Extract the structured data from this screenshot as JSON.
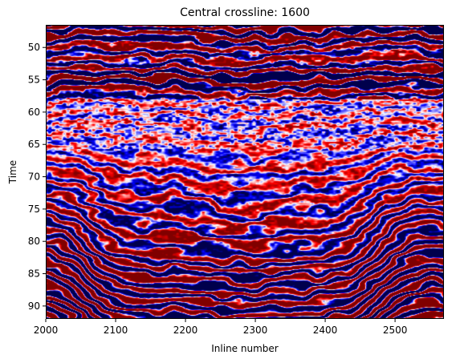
{
  "chart_data": {
    "type": "heatmap",
    "title": "Central crossline: 1600",
    "xlabel": "Inline number",
    "ylabel": "Time",
    "xlim": [
      2000,
      2570
    ],
    "ylim": [
      92,
      46.5
    ],
    "x_ticks": [
      "2000",
      "2100",
      "2200",
      "2300",
      "2400",
      "2500"
    ],
    "x_tick_values": [
      2000,
      2100,
      2200,
      2300,
      2400,
      2500
    ],
    "y_ticks": [
      "50",
      "55",
      "60",
      "65",
      "70",
      "75",
      "80",
      "85",
      "90"
    ],
    "y_tick_values": [
      50,
      55,
      60,
      65,
      70,
      75,
      80,
      85,
      90
    ],
    "colormap": "seismic",
    "colors": {
      "negative": "#00004c",
      "zero": "#ffffff",
      "positive": "#800000"
    },
    "grid": false
  }
}
